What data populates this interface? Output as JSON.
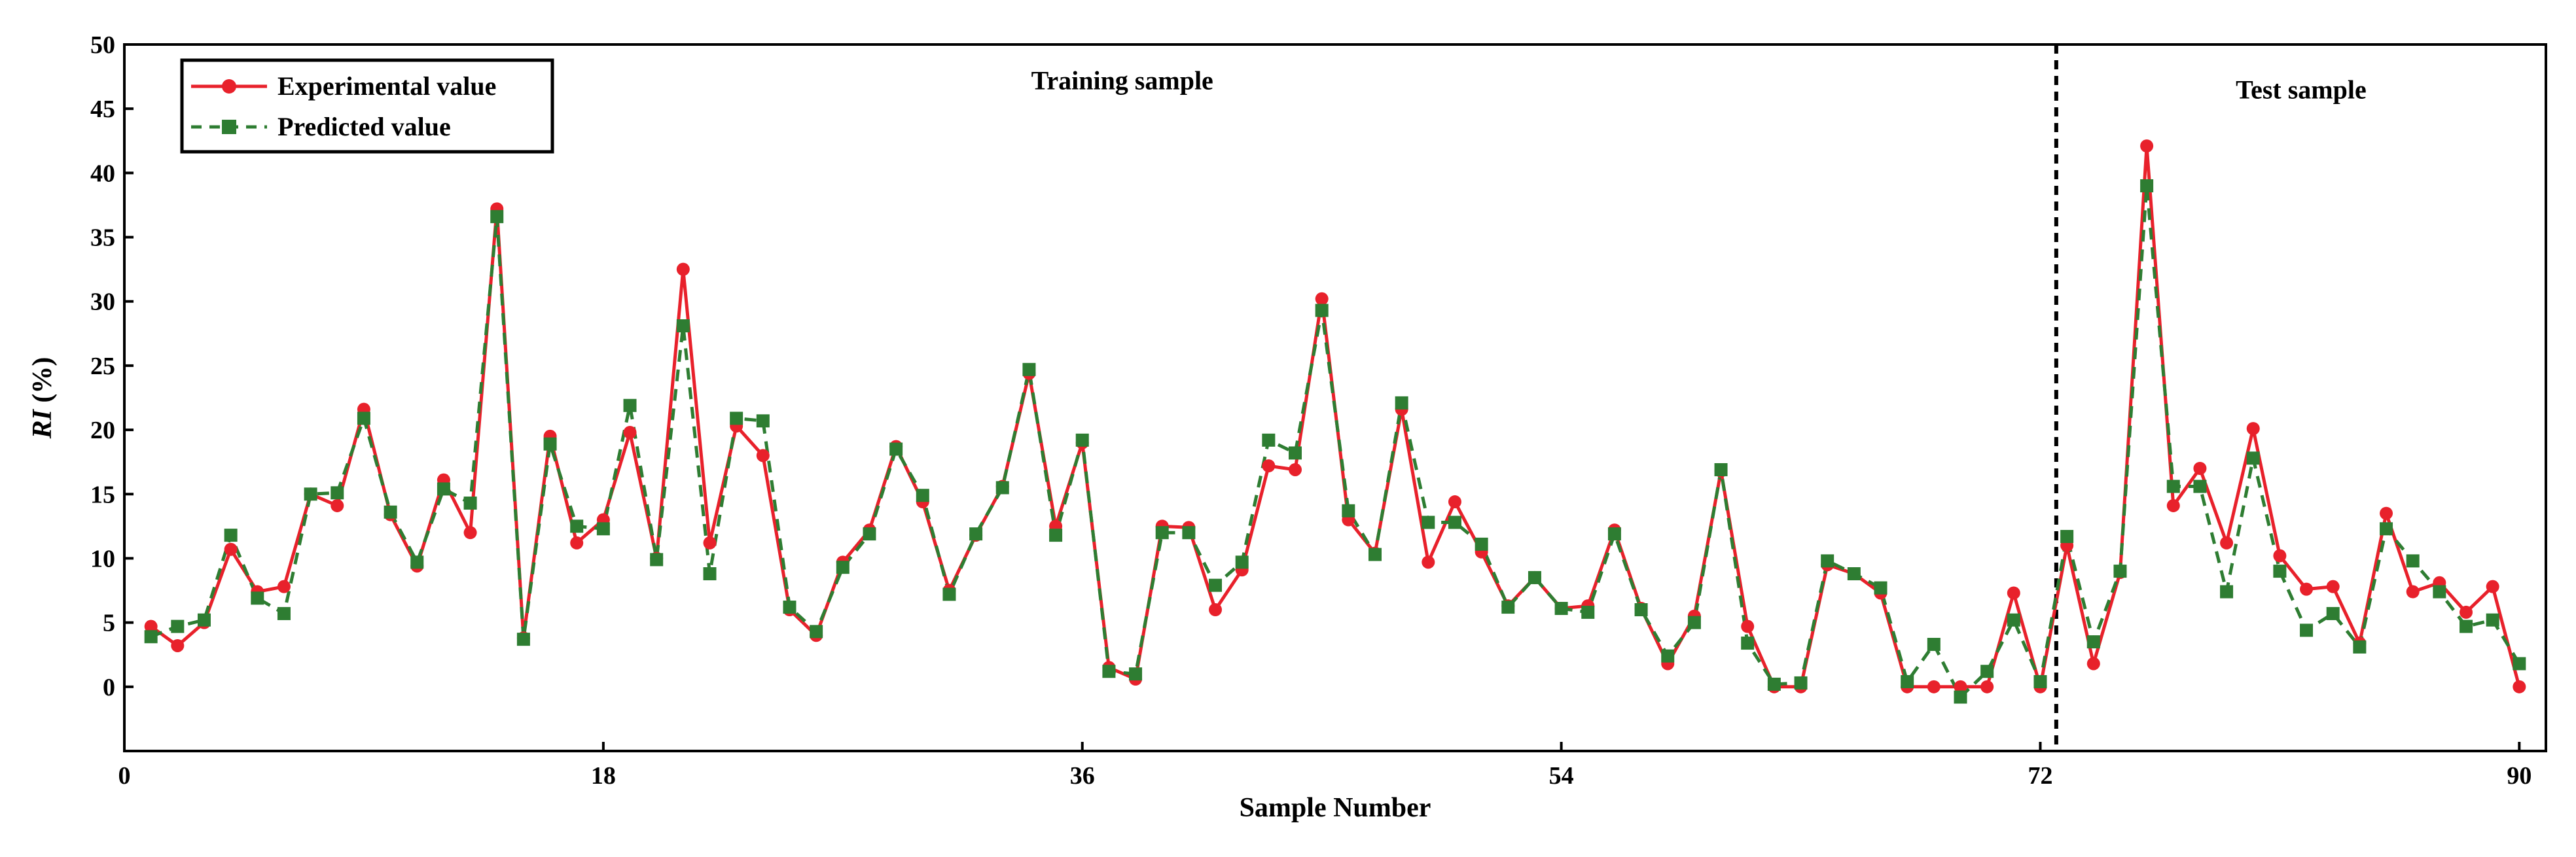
{
  "chart_data": {
    "type": "line",
    "xlabel": "Sample Number",
    "ylabel_italic": "RI",
    "ylabel_rest": " (%)",
    "xlim": [
      0,
      91
    ],
    "ylim": [
      -5,
      50
    ],
    "xticks": [
      0,
      18,
      36,
      54,
      72,
      90
    ],
    "yticks": [
      0,
      5,
      10,
      15,
      20,
      25,
      30,
      35,
      40,
      45,
      50
    ],
    "grid": false,
    "legend_position": "top-left",
    "divider_x": 72.6,
    "annotations": [
      {
        "text": "Training sample",
        "x": 37.5,
        "y": 46.5
      },
      {
        "text": "Test sample",
        "x": 81.8,
        "y": 45.8
      }
    ],
    "x": [
      1,
      2,
      3,
      4,
      5,
      6,
      7,
      8,
      9,
      10,
      11,
      12,
      13,
      14,
      15,
      16,
      17,
      18,
      19,
      20,
      21,
      22,
      23,
      24,
      25,
      26,
      27,
      28,
      29,
      30,
      31,
      32,
      33,
      34,
      35,
      36,
      37,
      38,
      39,
      40,
      41,
      42,
      43,
      44,
      45,
      46,
      47,
      48,
      49,
      50,
      51,
      52,
      53,
      54,
      55,
      56,
      57,
      58,
      59,
      60,
      61,
      62,
      63,
      64,
      65,
      66,
      67,
      68,
      69,
      70,
      71,
      72,
      73,
      74,
      75,
      76,
      77,
      78,
      79,
      80,
      81,
      82,
      83,
      84,
      85,
      86,
      87,
      88,
      89,
      90
    ],
    "series": [
      {
        "name": "Experimental value",
        "color": "#e8212b",
        "marker": "circle",
        "line_style": "solid",
        "values": [
          4.7,
          3.2,
          5.0,
          10.7,
          7.4,
          7.8,
          15.0,
          14.1,
          21.6,
          13.4,
          9.4,
          16.1,
          12.0,
          37.2,
          3.8,
          19.5,
          11.2,
          13.0,
          19.8,
          10.0,
          32.5,
          11.2,
          20.3,
          18.0,
          6.0,
          4.0,
          9.7,
          12.2,
          18.7,
          14.4,
          7.5,
          11.8,
          15.6,
          24.4,
          12.5,
          19.0,
          1.5,
          0.6,
          12.5,
          12.4,
          6.0,
          9.1,
          17.2,
          16.9,
          30.2,
          13.0,
          10.4,
          21.6,
          9.7,
          14.4,
          10.5,
          6.3,
          8.5,
          6.1,
          6.3,
          12.2,
          6.1,
          1.8,
          5.5,
          16.8,
          4.7,
          0.0,
          0.0,
          9.5,
          8.8,
          7.3,
          0.0,
          0.0,
          0.0,
          0.0,
          7.3,
          0.0,
          11.0,
          1.8,
          8.9,
          42.1,
          14.1,
          17.0,
          11.2,
          20.1,
          10.2,
          7.6,
          7.8,
          3.4,
          13.5,
          7.4,
          8.1,
          5.8,
          7.8,
          0.0
        ]
      },
      {
        "name": "Predicted value",
        "color": "#2e7d32",
        "marker": "square",
        "line_style": "dashed",
        "values": [
          3.9,
          4.7,
          5.2,
          11.8,
          6.9,
          5.7,
          15.0,
          15.1,
          20.9,
          13.6,
          9.7,
          15.4,
          14.3,
          36.6,
          3.7,
          18.9,
          12.5,
          12.3,
          21.9,
          9.9,
          28.1,
          8.8,
          20.9,
          20.7,
          6.2,
          4.3,
          9.3,
          11.9,
          18.5,
          14.9,
          7.2,
          11.9,
          15.5,
          24.7,
          11.8,
          19.2,
          1.2,
          1.0,
          12.0,
          12.0,
          7.9,
          9.7,
          19.2,
          18.2,
          29.3,
          13.7,
          10.3,
          22.1,
          12.8,
          12.8,
          11.1,
          6.2,
          8.5,
          6.1,
          5.8,
          11.9,
          6.0,
          2.4,
          5.0,
          16.9,
          3.4,
          0.2,
          0.3,
          9.8,
          8.8,
          7.7,
          0.4,
          3.3,
          -0.8,
          1.2,
          5.2,
          0.4,
          11.7,
          3.5,
          9.0,
          39.0,
          15.6,
          15.6,
          7.4,
          17.8,
          9.0,
          4.4,
          5.7,
          3.1,
          12.3,
          9.8,
          7.4,
          4.7,
          5.2,
          1.8
        ]
      }
    ]
  }
}
